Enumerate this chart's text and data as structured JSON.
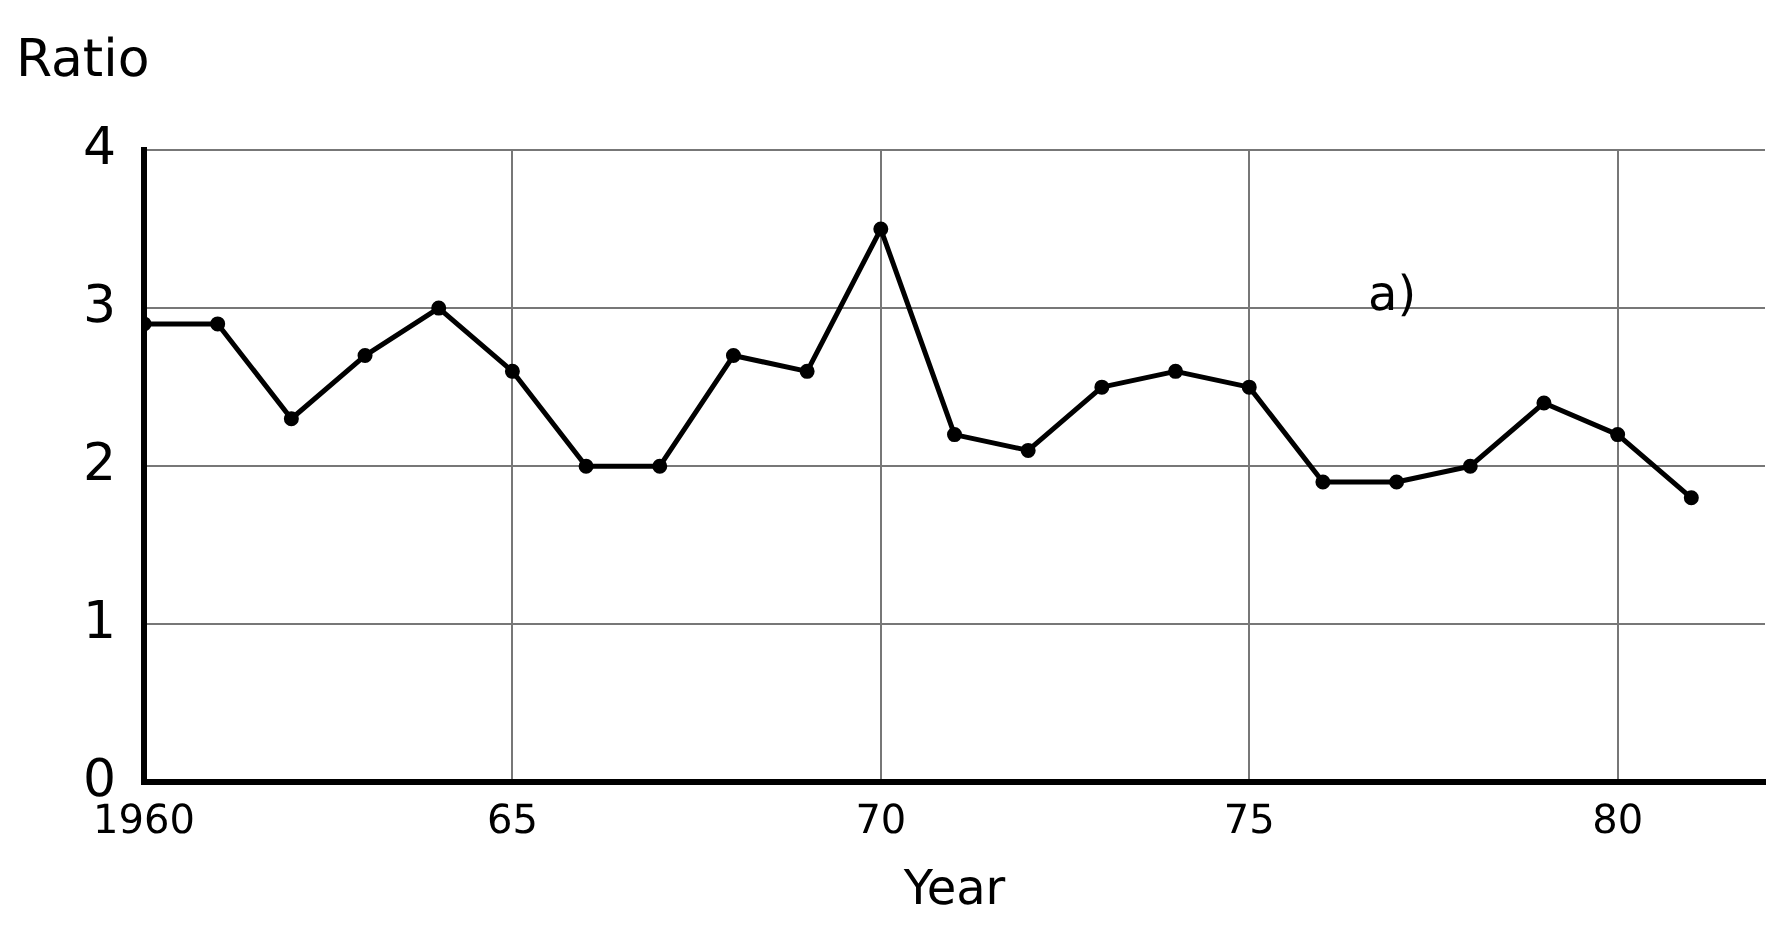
{
  "chart_data": {
    "type": "line",
    "xlabel": "Year",
    "ylabel": "Ratio",
    "annotations": [
      "a)"
    ],
    "x": [
      1960,
      1961,
      1962,
      1963,
      1964,
      1965,
      1966,
      1967,
      1968,
      1969,
      1970,
      1971,
      1972,
      1973,
      1974,
      1975,
      1976,
      1977,
      1978,
      1979,
      1980,
      1981
    ],
    "series": [
      {
        "color": "#000000",
        "values": [
          2.9,
          2.9,
          2.3,
          2.7,
          3.0,
          2.6,
          2.0,
          2.0,
          2.7,
          2.6,
          3.5,
          2.2,
          2.1,
          2.5,
          2.6,
          2.5,
          1.9,
          1.9,
          2.0,
          2.4,
          2.2,
          1.8
        ]
      }
    ],
    "xlim": [
      1960,
      1982
    ],
    "xticks": [
      1960,
      {
        "value": 1965,
        "label": "65"
      },
      {
        "value": 1970,
        "label": "70"
      },
      {
        "value": 1975,
        "label": "75"
      },
      {
        "value": 1980,
        "label": "80"
      }
    ],
    "ylim": [
      0,
      4
    ],
    "yticks": [
      0,
      1,
      2,
      3,
      4
    ],
    "grid": true,
    "marker": "circle",
    "line_style": "solid",
    "legend": false
  }
}
